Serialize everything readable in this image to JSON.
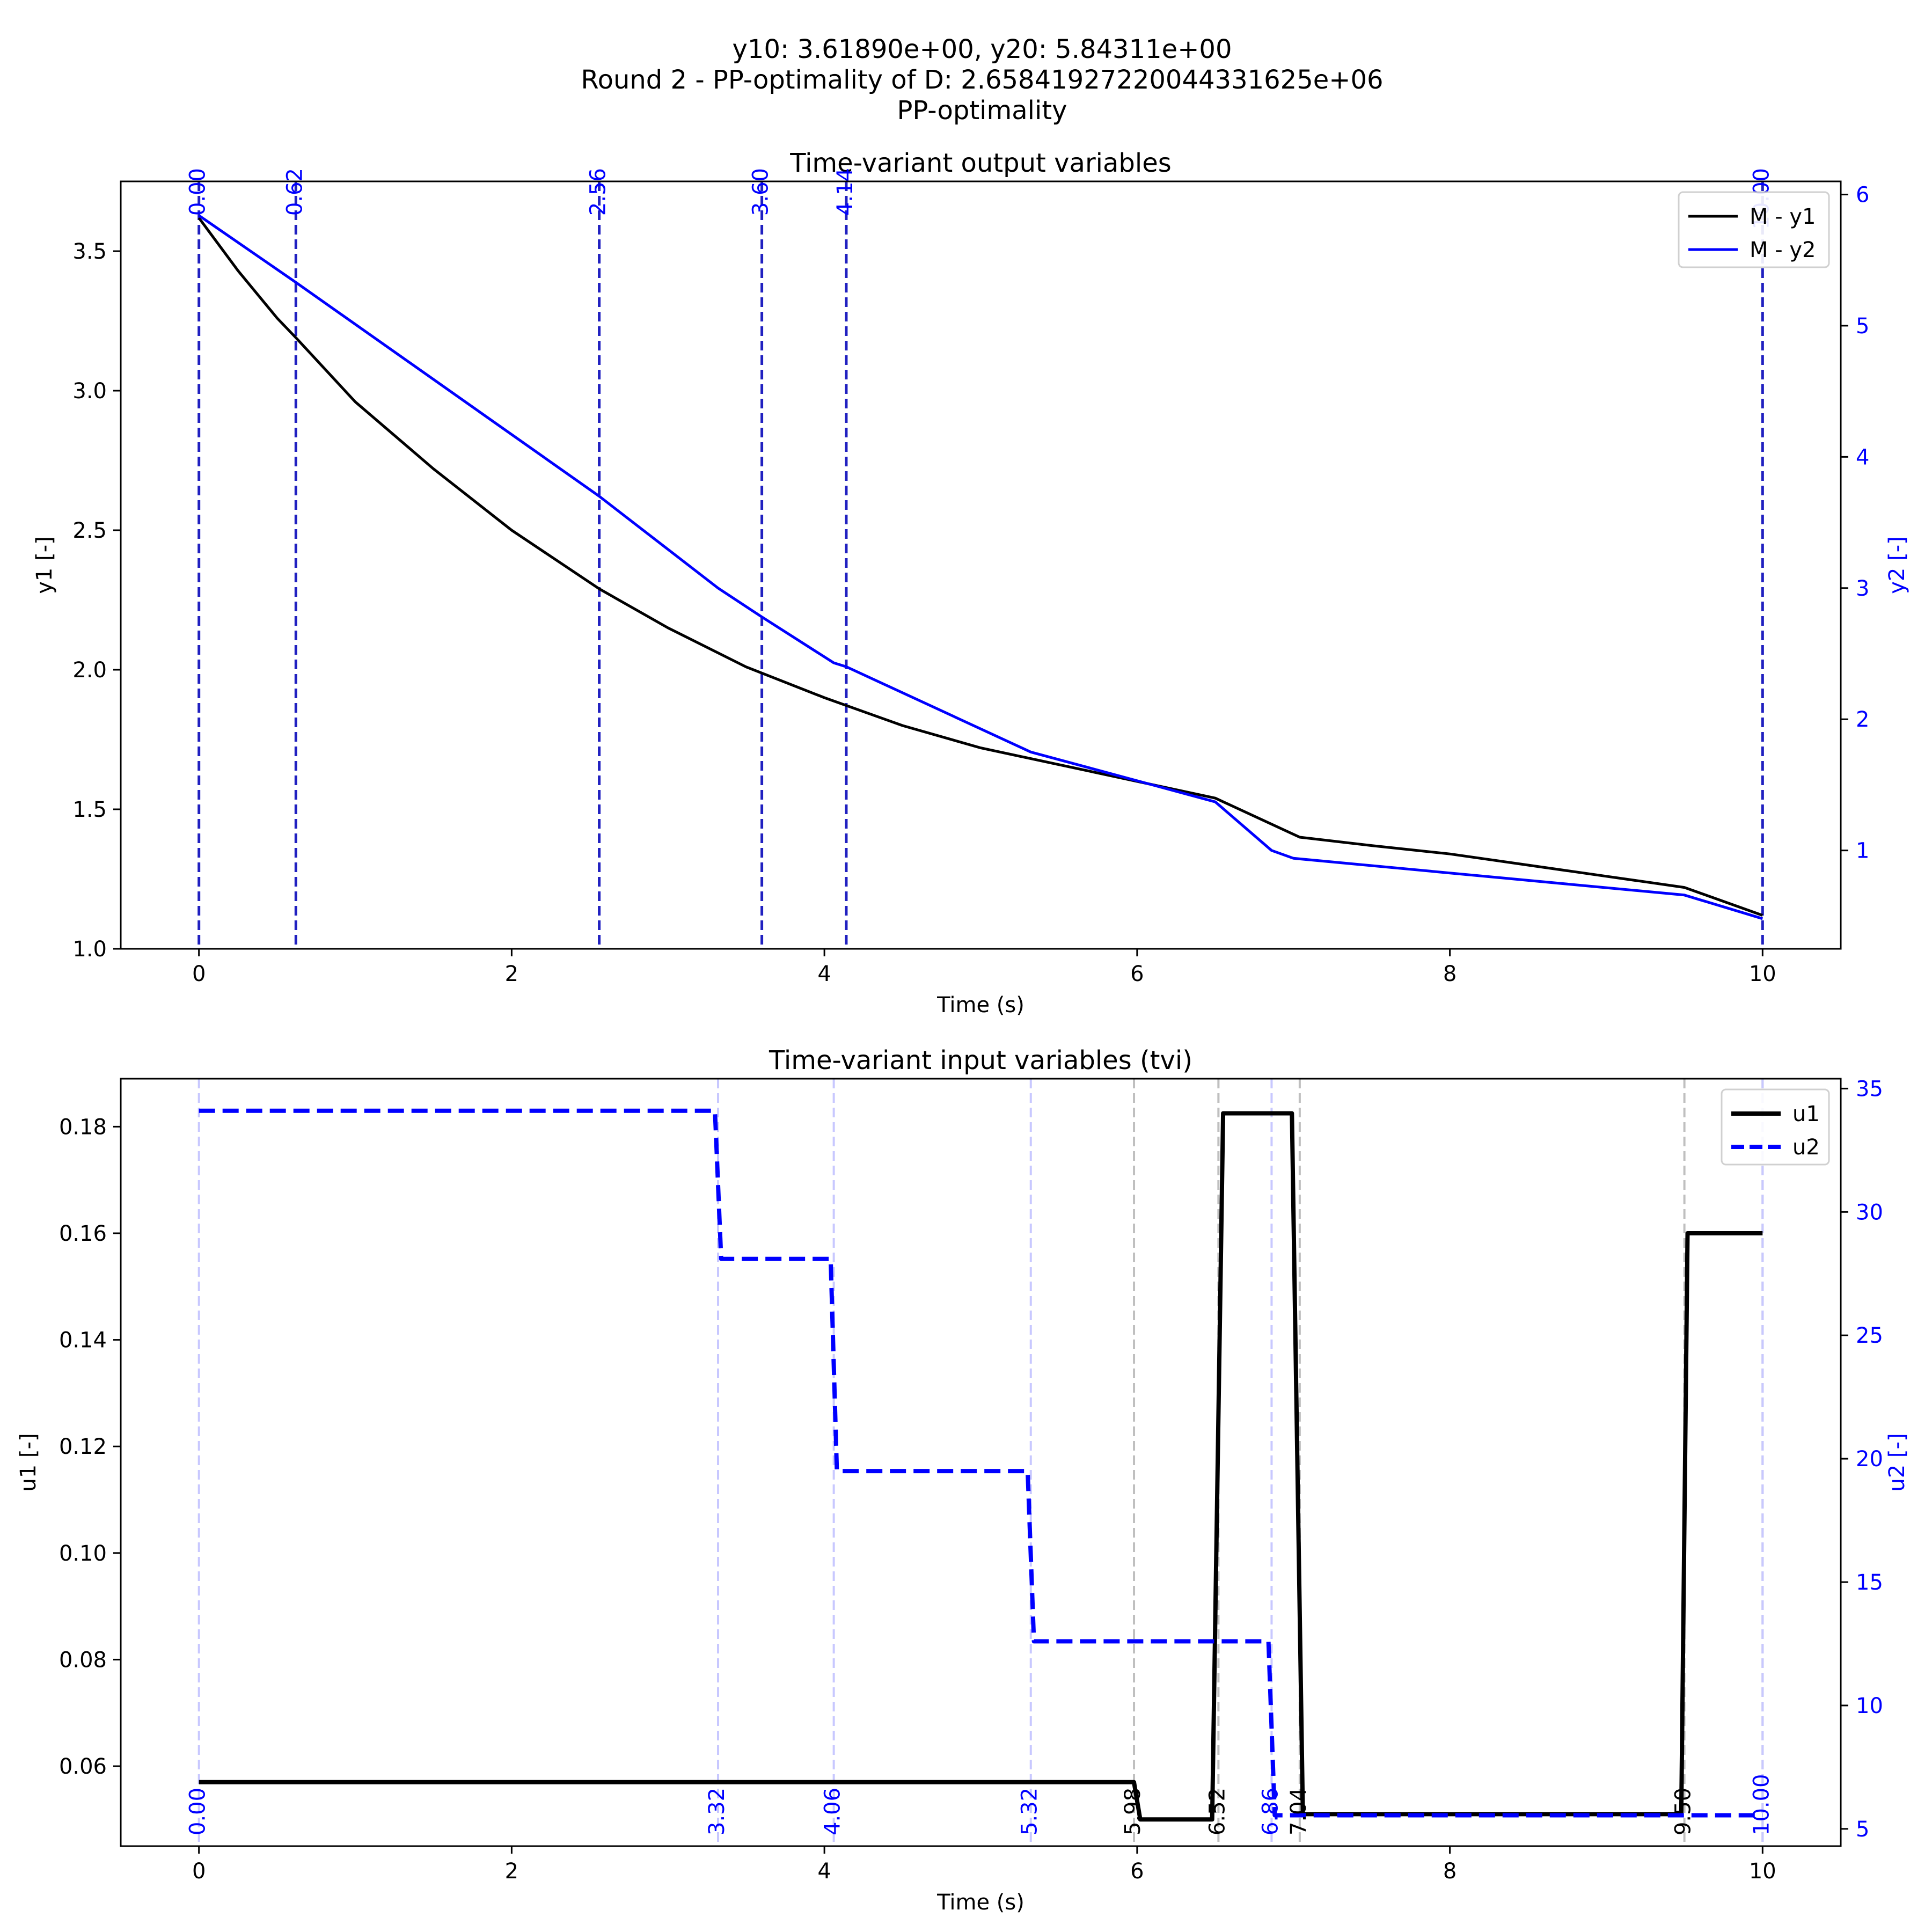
{
  "figure": {
    "title_lines": [
      "y10: 3.61890e+00, y20: 5.84311e+00",
      "Round 2 - PP-optimality of D: 2.65841927220044331625e+06",
      "PP-optimality"
    ]
  },
  "colors": {
    "black": "#000000",
    "blue": "#0000ff",
    "gray": "#bfbfbf",
    "light_blue": "#c8c8ff",
    "dark_blue_dash": "#2020c0"
  },
  "chart_data": [
    {
      "type": "line",
      "title": "Time-variant output variables",
      "xlabel": "Time (s)",
      "ylabel_left": "y1 [-]",
      "ylabel_right": "y2 [-]",
      "xlim": [
        -0.5,
        10.5
      ],
      "ylim_left": [
        1.0,
        3.75
      ],
      "ylim_right": [
        0.25,
        6.1
      ],
      "xticks": [
        "0",
        "2",
        "4",
        "6",
        "8",
        "10"
      ],
      "yticks_left": [
        "1.0",
        "1.5",
        "2.0",
        "2.5",
        "3.0",
        "3.5"
      ],
      "yticks_right": [
        "1",
        "2",
        "3",
        "4",
        "5",
        "6"
      ],
      "legend": [
        "M - y1",
        "M - y2"
      ],
      "legend_position": "upper-right",
      "series": [
        {
          "name": "M - y1",
          "axis": "left",
          "color": "#000000",
          "x": [
            0,
            0.25,
            0.5,
            0.62,
            1,
            1.5,
            2,
            2.56,
            3,
            3.5,
            4,
            4.5,
            5,
            5.5,
            6,
            6.5,
            7.04,
            7.5,
            8,
            8.5,
            9,
            9.5,
            10
          ],
          "y": [
            3.619,
            3.43,
            3.26,
            3.19,
            2.96,
            2.72,
            2.5,
            2.29,
            2.15,
            2.01,
            1.9,
            1.8,
            1.72,
            1.66,
            1.6,
            1.54,
            1.4,
            1.37,
            1.34,
            1.3,
            1.26,
            1.22,
            1.12
          ]
        },
        {
          "name": "M - y2",
          "axis": "right",
          "color": "#0000ff",
          "x": [
            0,
            0.62,
            2.56,
            3.32,
            3.6,
            4.06,
            4.14,
            5.32,
            6.5,
            6.86,
            7.0,
            9.5,
            10
          ],
          "y": [
            5.84,
            5.33,
            3.7,
            3.0,
            2.78,
            2.43,
            2.4,
            1.75,
            1.37,
            1.0,
            0.94,
            0.66,
            0.48
          ]
        }
      ],
      "vlines": [
        {
          "x": 0.0,
          "label": "0.00"
        },
        {
          "x": 0.62,
          "label": "0.62"
        },
        {
          "x": 2.56,
          "label": "2.56"
        },
        {
          "x": 3.6,
          "label": "3.60"
        },
        {
          "x": 4.14,
          "label": "4.14"
        },
        {
          "x": 10.0,
          "label": "10.00"
        }
      ]
    },
    {
      "type": "line",
      "title": "Time-variant input variables (tvi)",
      "xlabel": "Time (s)",
      "ylabel_left": "u1 [-]",
      "ylabel_right": "u2 [-]",
      "xlim": [
        -0.5,
        10.5
      ],
      "ylim_left": [
        0.045,
        0.189
      ],
      "ylim_right": [
        4.3,
        35.4
      ],
      "xticks": [
        "0",
        "2",
        "4",
        "6",
        "8",
        "10"
      ],
      "yticks_left": [
        "0.06",
        "0.08",
        "0.10",
        "0.12",
        "0.14",
        "0.16",
        "0.18"
      ],
      "yticks_right": [
        "5",
        "10",
        "15",
        "20",
        "25",
        "30",
        "35"
      ],
      "legend": [
        "u1",
        "u2"
      ],
      "legend_position": "upper-right",
      "series": [
        {
          "name": "u1",
          "axis": "left",
          "style": "solid",
          "color": "#000000",
          "x": [
            0,
            5.98,
            6.02,
            6.48,
            6.55,
            6.99,
            7.06,
            9.48,
            9.52,
            10
          ],
          "y": [
            0.057,
            0.057,
            0.05,
            0.05,
            0.1825,
            0.1825,
            0.051,
            0.051,
            0.16,
            0.16
          ]
        },
        {
          "name": "u2",
          "axis": "right",
          "style": "dashed",
          "color": "#0000ff",
          "x": [
            0,
            3.3,
            3.34,
            4.04,
            4.08,
            5.3,
            5.34,
            6.84,
            6.88,
            10
          ],
          "y": [
            34.1,
            34.1,
            28.1,
            28.1,
            19.5,
            19.5,
            12.6,
            12.6,
            5.55,
            5.55
          ]
        }
      ],
      "vlines_u1": [
        {
          "x": 5.98,
          "label": "5.98"
        },
        {
          "x": 6.52,
          "label": "6.52"
        },
        {
          "x": 7.04,
          "label": "7.04"
        },
        {
          "x": 9.5,
          "label": "9.50"
        },
        {
          "x": 10.0,
          "label": ""
        }
      ],
      "vlines_u2": [
        {
          "x": 0.0,
          "label": "0.00"
        },
        {
          "x": 3.32,
          "label": "3.32"
        },
        {
          "x": 4.06,
          "label": "4.06"
        },
        {
          "x": 5.32,
          "label": "5.32"
        },
        {
          "x": 6.86,
          "label": "6.86"
        },
        {
          "x": 10.0,
          "label": "10.00"
        }
      ]
    }
  ]
}
